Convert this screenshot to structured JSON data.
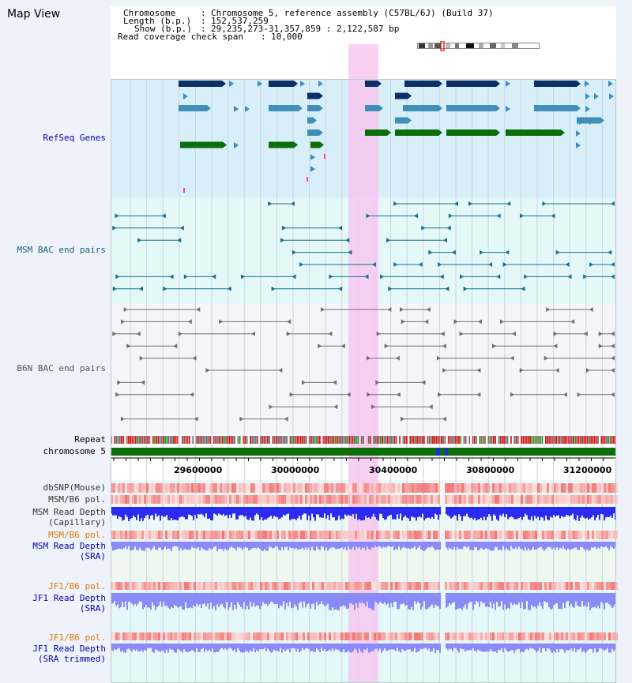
{
  "title": "Map View",
  "info": {
    "chromosome_label": "Chromosome",
    "chromosome_value": "Chromosome 5, reference assembly (C57BL/6J) (Build 37)",
    "length_label": "Length (b.p.)",
    "length_value": "152,537,259",
    "show_label": "Show (b.p.)",
    "show_value": "29,235,273-31,357,859 : 2,122,587 bp",
    "coverage_label": "Read coverage check span",
    "coverage_value": "10,000"
  },
  "tracks": {
    "refseq": "RefSeq Genes",
    "msm_bac": "MSM BAC end pairs",
    "b6n_bac": "B6N BAC end pairs",
    "repeat": "Repeat",
    "chromosome": "chromosome 5",
    "dbsnp": "dbSNP(Mouse)",
    "msm_b6_pol": "MSM/B6 pol.",
    "msm_depth_cap_1": "MSM Read Depth",
    "msm_depth_cap_2": "(Capillary)",
    "msm_b6_pol_sra": "MSM/B6 pol.",
    "msm_depth_sra_1": "MSM Read Depth",
    "msm_depth_sra_2": "(SRA)",
    "jf1_b6_pol": "JF1/B6 pol.",
    "jf1_depth_1": "JF1 Read Depth",
    "jf1_depth_2": "(SRA)",
    "jf1_b6_pol_trim": "JF1/B6 pol.",
    "jf1_trim_1": "JF1 Read Depth",
    "jf1_trim_2": "(SRA trimmed)"
  },
  "axis": {
    "ticks": [
      "29600000",
      "30000000",
      "30400000",
      "30800000",
      "31200000"
    ]
  },
  "colors": {
    "refseq_dark": "#0c2f66",
    "refseq_mid": "#3f8fb8",
    "refseq_green": "#0b6e0b",
    "bac_teal": "#1a6e8c",
    "bac_gray": "#707070",
    "highlight": "#f6c8f0",
    "chromosome": "#0a6e0a",
    "depth_blue": "#2a2af0",
    "depth_light": "#8a8af8",
    "label_blue": "#0000aa",
    "label_teal": "#1a5f7a",
    "label_orange": "#e07a00"
  }
}
